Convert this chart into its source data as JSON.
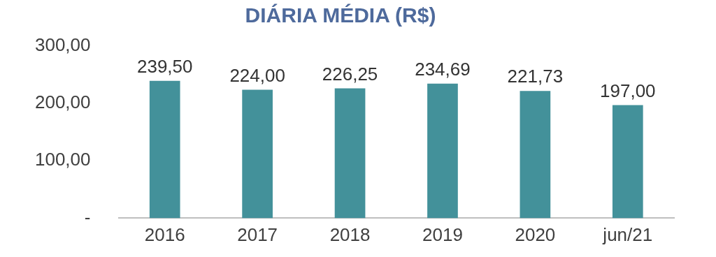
{
  "chart_data": {
    "type": "bar",
    "title": "DIÁRIA MÉDIA (R$)",
    "categories": [
      "2016",
      "2017",
      "2018",
      "2019",
      "2020",
      "jun/21"
    ],
    "values": [
      239.5,
      224.0,
      226.25,
      234.69,
      221.73,
      197.0
    ],
    "value_labels": [
      "239,50",
      "224,00",
      "226,25",
      "234,69",
      "221,73",
      "197,00"
    ],
    "color": "#43919a",
    "ylim": [
      0,
      300
    ],
    "yticks": [
      {
        "value": 0,
        "label": "-"
      },
      {
        "value": 100,
        "label": "100,00"
      },
      {
        "value": 200,
        "label": "200,00"
      },
      {
        "value": 300,
        "label": "300,00"
      }
    ],
    "grid": false,
    "legend": false
  }
}
